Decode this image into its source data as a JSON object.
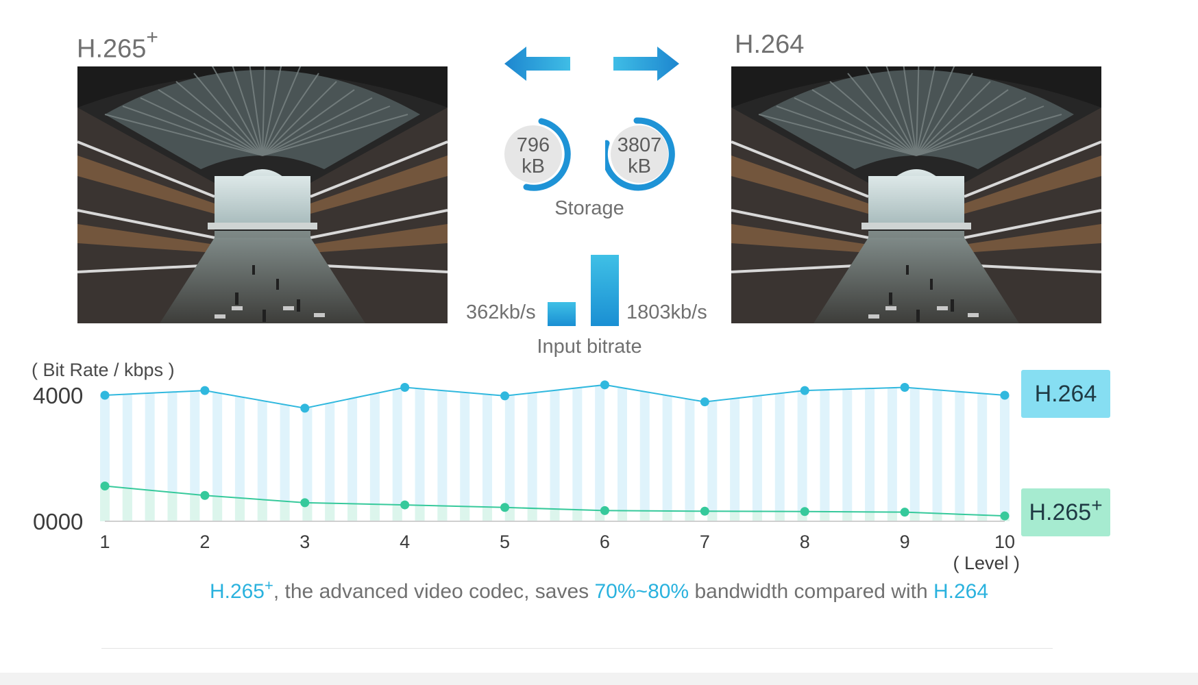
{
  "comparison": {
    "left_codec": "H.265",
    "left_codec_sup": "+",
    "right_codec": "H.264",
    "storage": {
      "label": "Storage",
      "left_value": "796",
      "left_unit": "kB",
      "right_value": "3807",
      "right_unit": "kB"
    },
    "bitrate": {
      "label": "Input bitrate",
      "left_value": "362kb/s",
      "right_value": "1803kb/s"
    }
  },
  "colors": {
    "accent_blue": "#2ab2de",
    "h264_line": "#30b8de",
    "h264_fill": "#dff3fb",
    "h265_line": "#36c99b",
    "h265_fill": "#dcf5ec",
    "h264_badge": "#86def2",
    "h265_badge": "#a6ebd0"
  },
  "chart_data": {
    "type": "line",
    "ylabel": "( Bit Rate / kbps )",
    "xlabel": "( Level )",
    "y_tick_labels": [
      "4000",
      "0000"
    ],
    "ylim": [
      0,
      4000
    ],
    "x": [
      1,
      2,
      3,
      4,
      5,
      6,
      7,
      8,
      9,
      10
    ],
    "x_tick_labels": [
      "1",
      "2",
      "3",
      "4",
      "5",
      "6",
      "7",
      "8",
      "9",
      "10"
    ],
    "grid": false,
    "legend_position": "right",
    "series": [
      {
        "name": "H.264",
        "values": [
          4000,
          4150,
          3590,
          4250,
          3980,
          4330,
          3790,
          4150,
          4250,
          4000
        ]
      },
      {
        "name": "H.265+",
        "values": [
          1120,
          820,
          590,
          520,
          440,
          340,
          320,
          310,
          290,
          170
        ]
      }
    ]
  },
  "caption": {
    "part1": "H.265",
    "part1_sup": "+",
    "part2": ", the advanced video codec, saves ",
    "part3": "70%~80%",
    "part4": " bandwidth compared with ",
    "part5": "H.264"
  }
}
